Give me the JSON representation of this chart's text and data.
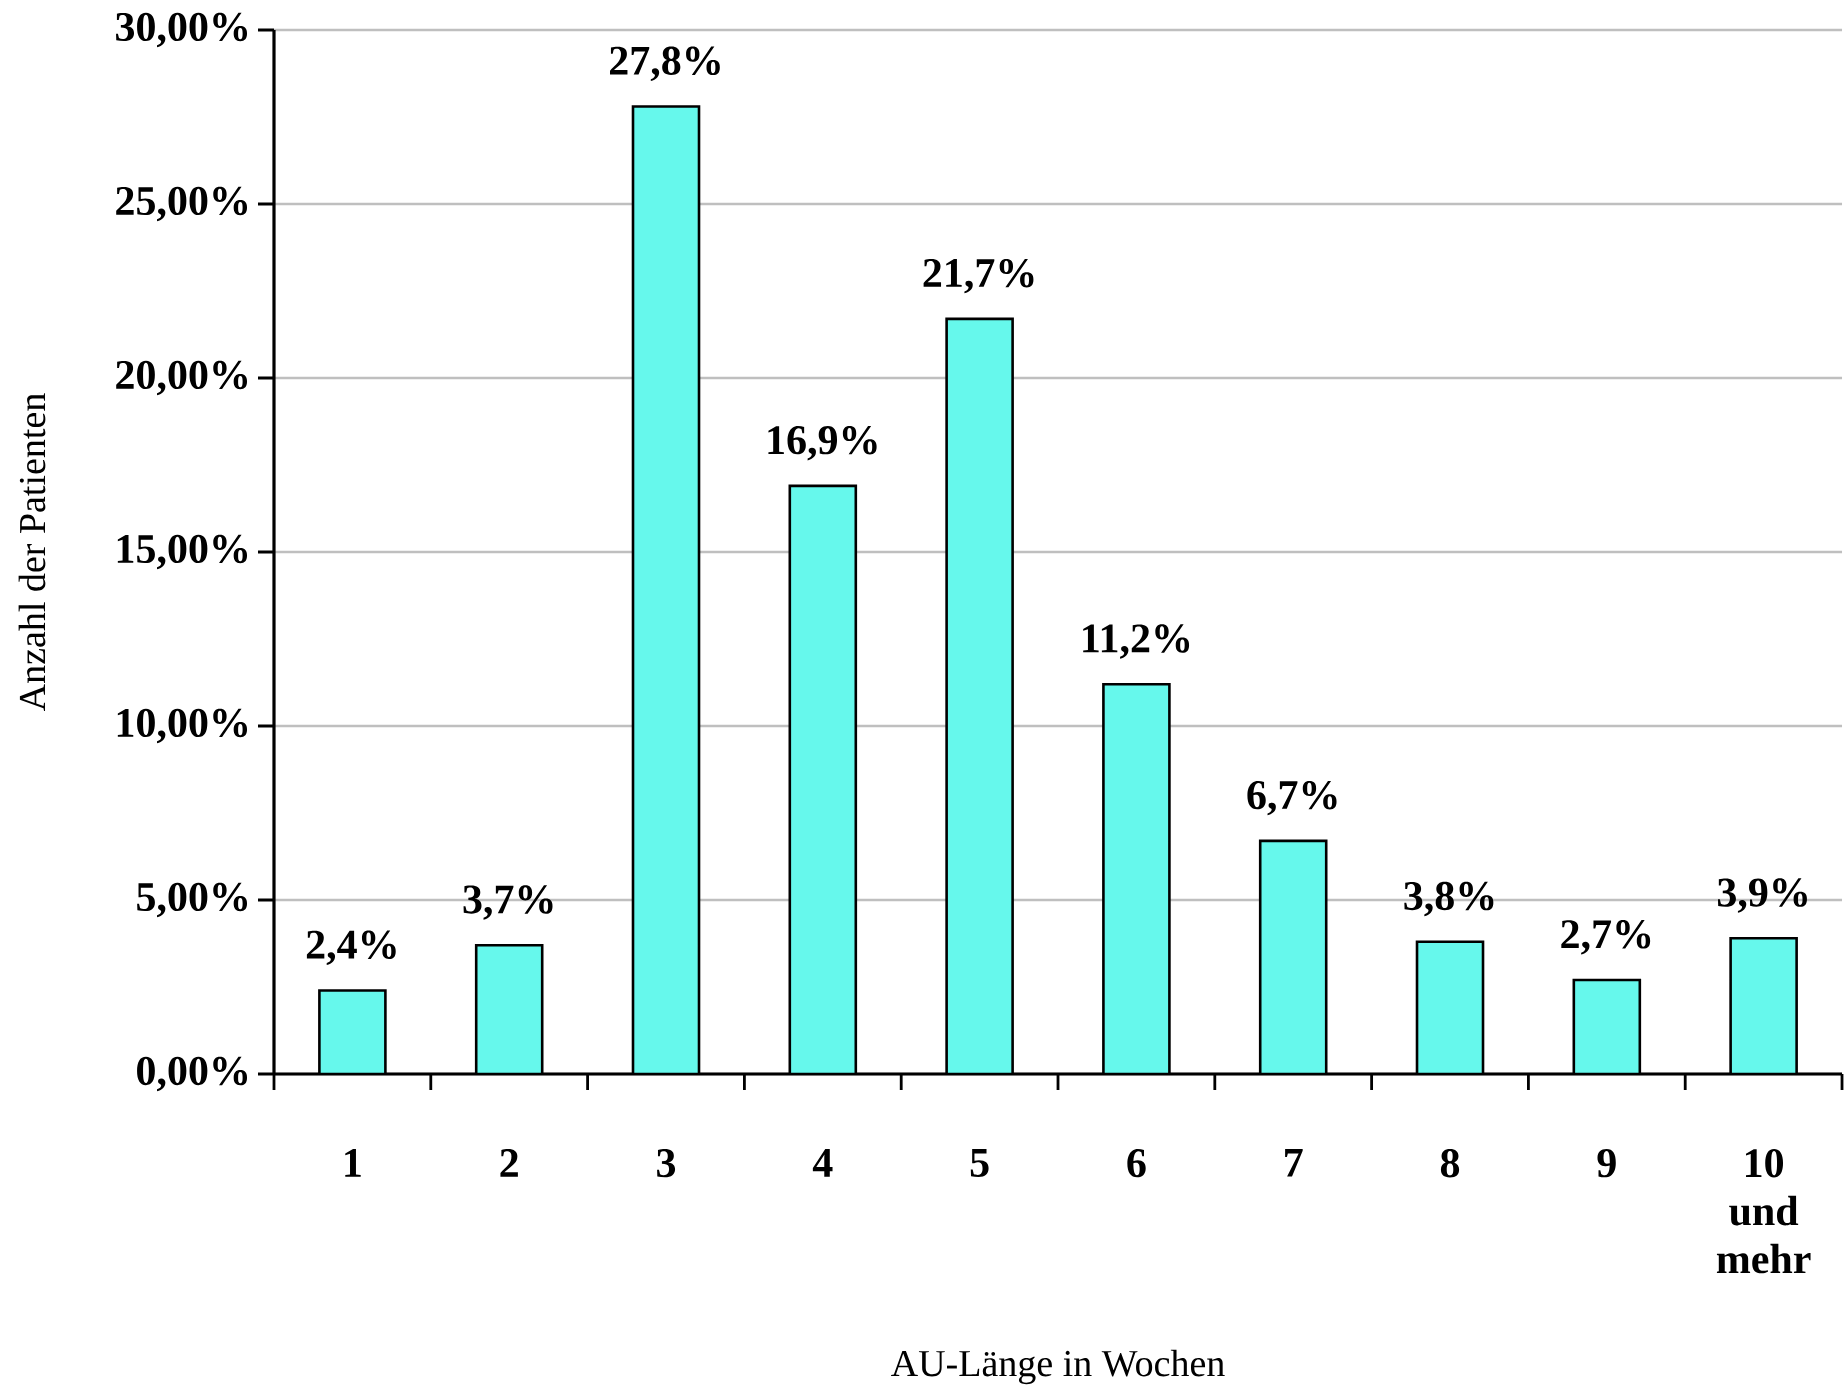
{
  "chart_data": {
    "type": "bar",
    "xlabel": "AU-Länge in Wochen",
    "ylabel": "Anzahl der Patienten",
    "categories": [
      "1",
      "2",
      "3",
      "4",
      "5",
      "6",
      "7",
      "8",
      "9",
      "10 und mehr"
    ],
    "values": [
      2.4,
      3.7,
      27.8,
      16.9,
      21.7,
      11.2,
      6.7,
      3.8,
      2.7,
      3.9
    ],
    "value_labels": [
      "2,4%",
      "3,7%",
      "27,8%",
      "16,9%",
      "21,7%",
      "11,2%",
      "6,7%",
      "3,8%",
      "2,7%",
      "3,9%"
    ],
    "color": "#66f8ec",
    "ylim": [
      0,
      30
    ],
    "yticks": [
      {
        "value": 0,
        "label": "0,00%"
      },
      {
        "value": 5,
        "label": "5,00%"
      },
      {
        "value": 10,
        "label": "10,00%"
      },
      {
        "value": 15,
        "label": "15,00%"
      },
      {
        "value": 20,
        "label": "20,00%"
      },
      {
        "value": 25,
        "label": "25,00%"
      },
      {
        "value": 30,
        "label": "30,00%"
      }
    ],
    "grid": "y",
    "legend": false
  }
}
